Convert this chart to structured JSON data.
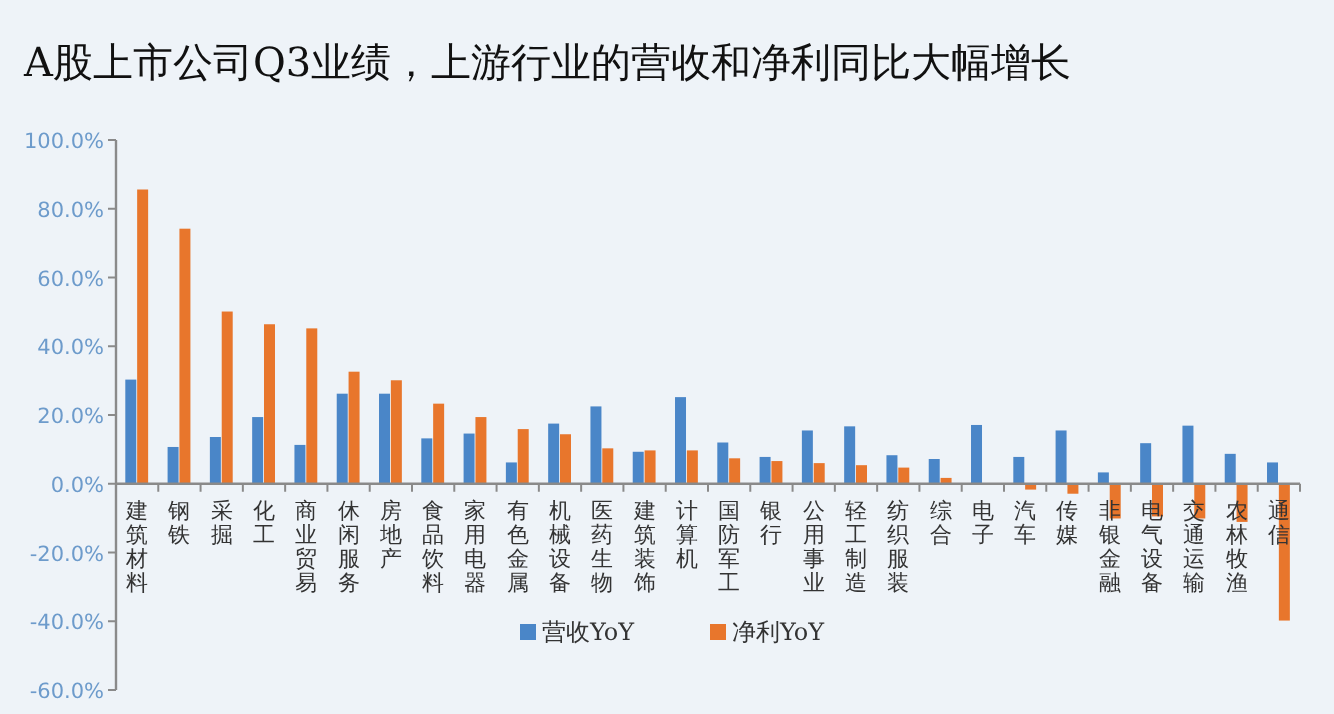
{
  "chart_data": {
    "type": "bar",
    "title": "A股上市公司Q3业绩，上游行业的营收和净利同比大幅增长",
    "categories": [
      "建筑材料",
      "钢铁",
      "采掘",
      "化工",
      "商业贸易",
      "休闲服务",
      "房地产",
      "食品饮料",
      "家用电器",
      "有色金属",
      "机械设备",
      "医药生物",
      "建筑装饰",
      "计算机",
      "国防军工",
      "银行",
      "公用事业",
      "轻工制造",
      "纺织服装",
      "综合",
      "电子",
      "汽车",
      "传媒",
      "非银金融",
      "电气设备",
      "交通运输",
      "农林牧渔",
      "通信"
    ],
    "series": [
      {
        "name": "营收YoY",
        "color": "#4a86c8",
        "values": [
          30.3,
          10.7,
          13.6,
          19.4,
          11.3,
          26.2,
          26.2,
          13.2,
          14.6,
          6.2,
          17.5,
          22.5,
          9.3,
          25.2,
          12.0,
          7.8,
          15.5,
          16.7,
          8.3,
          7.2,
          17.1,
          7.8,
          15.5,
          3.3,
          11.8,
          16.9,
          8.7,
          6.2
        ]
      },
      {
        "name": "净利YoY",
        "color": "#e8762c",
        "values": [
          85.6,
          74.2,
          50.1,
          46.4,
          45.2,
          32.6,
          30.1,
          23.3,
          19.4,
          15.9,
          14.4,
          10.3,
          9.7,
          9.7,
          7.4,
          6.6,
          6.0,
          5.4,
          4.7,
          1.7,
          0,
          -1.7,
          -2.9,
          -10.1,
          -9.5,
          -10.1,
          -11.1,
          -39.8
        ]
      }
    ],
    "ylim": [
      -60,
      100
    ],
    "yticks": [
      {
        "value": -60,
        "label": "-60.0%"
      },
      {
        "value": -40,
        "label": "-40.0%"
      },
      {
        "value": -20,
        "label": "-20.0%"
      },
      {
        "value": 0,
        "label": "0.0%"
      },
      {
        "value": 20,
        "label": "20.0%"
      },
      {
        "value": 40,
        "label": "40.0%"
      },
      {
        "value": 60,
        "label": "60.0%"
      },
      {
        "value": 80,
        "label": "80.0%"
      },
      {
        "value": 100,
        "label": "100.0%"
      }
    ],
    "legend": "bottom"
  }
}
